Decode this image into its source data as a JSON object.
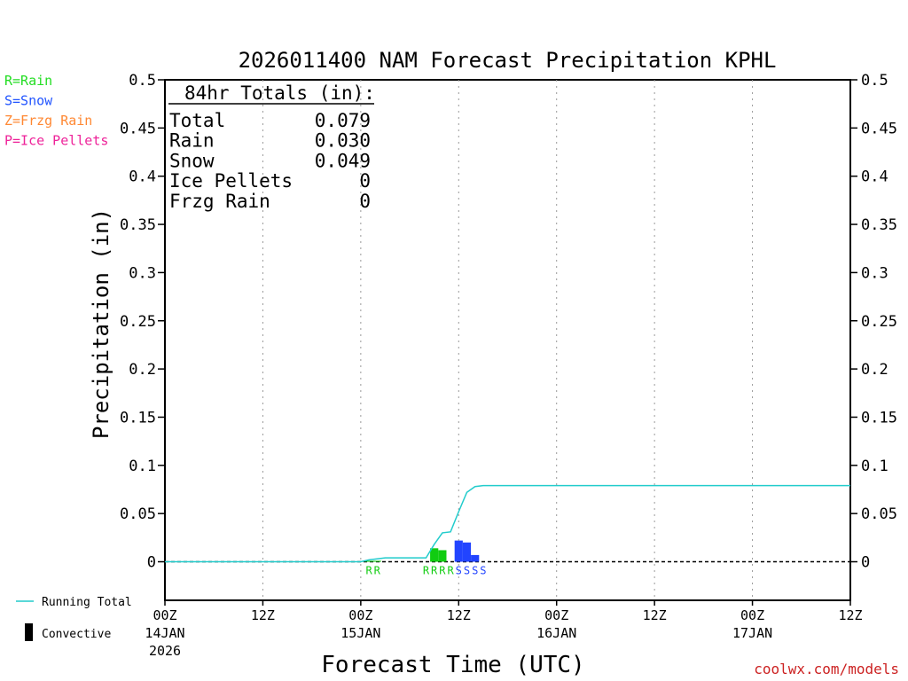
{
  "chart_data": {
    "type": "bar",
    "title": "2026011400 NAM Forecast Precipitation KPHL",
    "xlabel": "Forecast Time (UTC)",
    "ylabel": "Precipitation (in)",
    "ylim": [
      -0.04,
      0.5
    ],
    "y_ticks": [
      0,
      0.05,
      0.1,
      0.15,
      0.2,
      0.25,
      0.3,
      0.35,
      0.4,
      0.45,
      0.5
    ],
    "y_tick_labels": [
      "0",
      "0.05",
      "0.1",
      "0.15",
      "0.2",
      "0.25",
      "0.3",
      "0.35",
      "0.4",
      "0.45",
      "0.5"
    ],
    "xlim_hours": [
      0,
      84
    ],
    "x_ticks": [
      {
        "hour": 0,
        "time": "00Z",
        "date": "14JAN",
        "year": "2026"
      },
      {
        "hour": 12,
        "time": "12Z",
        "date": "",
        "year": ""
      },
      {
        "hour": 24,
        "time": "00Z",
        "date": "15JAN",
        "year": ""
      },
      {
        "hour": 36,
        "time": "12Z",
        "date": "",
        "year": ""
      },
      {
        "hour": 48,
        "time": "00Z",
        "date": "16JAN",
        "year": ""
      },
      {
        "hour": 60,
        "time": "12Z",
        "date": "",
        "year": ""
      },
      {
        "hour": 72,
        "time": "00Z",
        "date": "17JAN",
        "year": ""
      },
      {
        "hour": 84,
        "time": "12Z",
        "date": "",
        "year": ""
      }
    ],
    "grid": "dotted vertical",
    "legend_top": [
      {
        "label": "R=Rain",
        "color": "#22dd22"
      },
      {
        "label": "S=Snow",
        "color": "#2255ff"
      },
      {
        "label": "Z=Frzg Rain",
        "color": "#ff8833"
      },
      {
        "label": "P=Ice Pellets",
        "color": "#ee2299"
      }
    ],
    "legend_bottom": [
      {
        "label": "Running Total",
        "color": "#22cccc",
        "kind": "line"
      },
      {
        "label": "Convective",
        "color": "#000000",
        "kind": "bar"
      }
    ],
    "totals_box": {
      "heading": "84hr Totals (in):",
      "rows": [
        {
          "name": "Total",
          "value": "0.079"
        },
        {
          "name": "Rain",
          "value": "0.030"
        },
        {
          "name": "Snow",
          "value": "0.049"
        },
        {
          "name": "Ice Pellets",
          "value": "0"
        },
        {
          "name": "Frzg Rain",
          "value": "0"
        }
      ]
    },
    "series": [
      {
        "name": "Rain",
        "color": "#11cc11",
        "bars": [
          {
            "hour": 25,
            "value": 0.001
          },
          {
            "hour": 26,
            "value": 0.001
          },
          {
            "hour": 33,
            "value": 0.014
          },
          {
            "hour": 34,
            "value": 0.012
          }
        ],
        "ptype_letters": [
          {
            "hour": 25,
            "letter": "R"
          },
          {
            "hour": 26,
            "letter": "R"
          },
          {
            "hour": 32,
            "letter": "R"
          },
          {
            "hour": 33,
            "letter": "R"
          },
          {
            "hour": 34,
            "letter": "R"
          },
          {
            "hour": 35,
            "letter": "R"
          }
        ]
      },
      {
        "name": "Snow",
        "color": "#2244ff",
        "bars": [
          {
            "hour": 36,
            "value": 0.022
          },
          {
            "hour": 37,
            "value": 0.02
          },
          {
            "hour": 38,
            "value": 0.007
          }
        ],
        "ptype_letters": [
          {
            "hour": 36,
            "letter": "S"
          },
          {
            "hour": 37,
            "letter": "S"
          },
          {
            "hour": 38,
            "letter": "S"
          },
          {
            "hour": 39,
            "letter": "S"
          }
        ]
      },
      {
        "name": "Running Total",
        "color": "#22cccc",
        "x": [
          0,
          24,
          25,
          26,
          27,
          28,
          29,
          30,
          31,
          32,
          33,
          34,
          35,
          36,
          37,
          38,
          39,
          84
        ],
        "y": [
          0,
          0,
          0.002,
          0.003,
          0.004,
          0.004,
          0.004,
          0.004,
          0.004,
          0.004,
          0.018,
          0.03,
          0.031,
          0.052,
          0.072,
          0.078,
          0.079,
          0.079
        ]
      }
    ],
    "credit": "coolwx.com/models"
  }
}
